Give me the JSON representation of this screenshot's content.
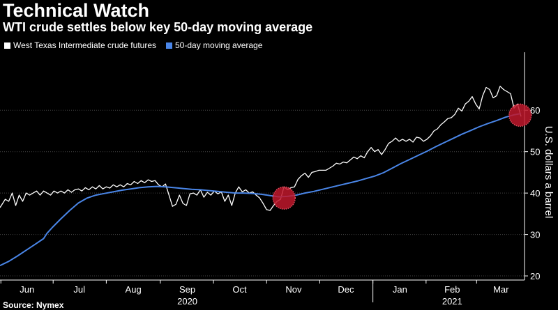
{
  "header": {
    "title": "Technical Watch",
    "subtitle": "WTI crude settles below key 50-day moving average"
  },
  "footer": {
    "source": "Source: Nymex"
  },
  "colors": {
    "background": "#000000",
    "wti": "#ffffff",
    "ma": "#4a86e8",
    "highlight": "#c0182b",
    "grid": "#444444"
  },
  "chart_data": {
    "type": "line",
    "title": "Technical Watch",
    "subtitle": "WTI crude settles below key 50-day moving average",
    "xlabel": "",
    "ylabel": "U.S. dollars a barrel",
    "ylim": [
      19,
      74
    ],
    "y_ticks": [
      20,
      30,
      40,
      50,
      60
    ],
    "y_axis_position": "right",
    "grid": true,
    "legend_placement": "top-left",
    "x_ticks": [
      {
        "label": "Jun",
        "x": 15.5
      },
      {
        "label": "Jul",
        "x": 45.5
      },
      {
        "label": "Aug",
        "x": 76.5
      },
      {
        "label": "Sep",
        "x": 107.5
      },
      {
        "label": "Oct",
        "x": 137.5
      },
      {
        "label": "Nov",
        "x": 168.5
      },
      {
        "label": "Dec",
        "x": 198.5
      },
      {
        "label": "Jan",
        "x": 229.5
      },
      {
        "label": "Feb",
        "x": 259.5
      },
      {
        "label": "Mar",
        "x": 287.5
      }
    ],
    "year_labels": [
      {
        "label": "2020",
        "x": 107.5
      },
      {
        "label": "2021",
        "x": 259.5
      }
    ],
    "year_divider_x": 214,
    "series": [
      {
        "name": "West Texas Intermediate crude futures",
        "color": "#ffffff",
        "points": [
          [
            0,
            36.5
          ],
          [
            3,
            38.5
          ],
          [
            5,
            38.0
          ],
          [
            7,
            40.0
          ],
          [
            9,
            37.0
          ],
          [
            11,
            39.5
          ],
          [
            13,
            38.0
          ],
          [
            15,
            40.0
          ],
          [
            17,
            39.5
          ],
          [
            19,
            40.0
          ],
          [
            21,
            40.5
          ],
          [
            23,
            39.5
          ],
          [
            25,
            40.5
          ],
          [
            27,
            40.0
          ],
          [
            29,
            39.5
          ],
          [
            31,
            40.5
          ],
          [
            33,
            40.0
          ],
          [
            35,
            40.5
          ],
          [
            37,
            40.0
          ],
          [
            39,
            40.8
          ],
          [
            41,
            40.2
          ],
          [
            43,
            40.8
          ],
          [
            45,
            41.0
          ],
          [
            47,
            40.5
          ],
          [
            49,
            41.3
          ],
          [
            51,
            40.8
          ],
          [
            53,
            41.5
          ],
          [
            55,
            41.0
          ],
          [
            57,
            41.8
          ],
          [
            59,
            41.0
          ],
          [
            61,
            41.5
          ],
          [
            63,
            41.2
          ],
          [
            65,
            42.0
          ],
          [
            67,
            41.5
          ],
          [
            69,
            42.0
          ],
          [
            71,
            41.5
          ],
          [
            73,
            42.3
          ],
          [
            75,
            42.0
          ],
          [
            77,
            42.8
          ],
          [
            79,
            42.3
          ],
          [
            81,
            43.0
          ],
          [
            83,
            42.5
          ],
          [
            85,
            43.2
          ],
          [
            87,
            42.8
          ],
          [
            89,
            43.0
          ],
          [
            91,
            42.0
          ],
          [
            93,
            41.5
          ],
          [
            95,
            42.2
          ],
          [
            97,
            39.5
          ],
          [
            99,
            36.8
          ],
          [
            101,
            37.3
          ],
          [
            103,
            39.5
          ],
          [
            105,
            37.5
          ],
          [
            107,
            37.0
          ],
          [
            109,
            39.8
          ],
          [
            111,
            40.0
          ],
          [
            113,
            39.5
          ],
          [
            115,
            40.8
          ],
          [
            117,
            39.0
          ],
          [
            119,
            40.2
          ],
          [
            121,
            39.5
          ],
          [
            123,
            40.5
          ],
          [
            125,
            39.8
          ],
          [
            127,
            40.3
          ],
          [
            129,
            38.0
          ],
          [
            131,
            39.5
          ],
          [
            133,
            37.0
          ],
          [
            135,
            40.0
          ],
          [
            137,
            41.5
          ],
          [
            139,
            40.3
          ],
          [
            141,
            40.8
          ],
          [
            143,
            40.0
          ],
          [
            145,
            40.3
          ],
          [
            147,
            39.5
          ],
          [
            149,
            38.8
          ],
          [
            151,
            37.5
          ],
          [
            153,
            36.0
          ],
          [
            155,
            35.8
          ],
          [
            157,
            37.0
          ],
          [
            159,
            38.0
          ],
          [
            161,
            38.5
          ],
          [
            163,
            41.5
          ],
          [
            165,
            40.8
          ],
          [
            167,
            41.3
          ],
          [
            169,
            41.5
          ],
          [
            171,
            43.3
          ],
          [
            173,
            44.2
          ],
          [
            175,
            44.8
          ],
          [
            177,
            43.8
          ],
          [
            179,
            45.0
          ],
          [
            181,
            45.2
          ],
          [
            183,
            45.5
          ],
          [
            185,
            45.5
          ],
          [
            187,
            45.5
          ],
          [
            189,
            46.0
          ],
          [
            191,
            46.5
          ],
          [
            193,
            47.2
          ],
          [
            195,
            47.0
          ],
          [
            197,
            47.5
          ],
          [
            199,
            47.3
          ],
          [
            201,
            48.0
          ],
          [
            203,
            48.7
          ],
          [
            205,
            48.3
          ],
          [
            207,
            49.0
          ],
          [
            209,
            48.5
          ],
          [
            211,
            50.0
          ],
          [
            213,
            51.0
          ],
          [
            215,
            50.0
          ],
          [
            217,
            50.5
          ],
          [
            219,
            49.3
          ],
          [
            221,
            50.5
          ],
          [
            223,
            52.0
          ],
          [
            225,
            52.5
          ],
          [
            227,
            53.3
          ],
          [
            229,
            52.5
          ],
          [
            231,
            53.0
          ],
          [
            233,
            52.5
          ],
          [
            235,
            53.0
          ],
          [
            237,
            52.3
          ],
          [
            239,
            53.5
          ],
          [
            241,
            53.3
          ],
          [
            243,
            52.5
          ],
          [
            245,
            53.0
          ],
          [
            247,
            53.8
          ],
          [
            249,
            55.0
          ],
          [
            251,
            55.5
          ],
          [
            253,
            56.5
          ],
          [
            255,
            57.2
          ],
          [
            257,
            58.0
          ],
          [
            259,
            58.2
          ],
          [
            261,
            59.0
          ],
          [
            263,
            60.5
          ],
          [
            265,
            59.8
          ],
          [
            267,
            61.5
          ],
          [
            269,
            62.2
          ],
          [
            271,
            63.3
          ],
          [
            273,
            61.5
          ],
          [
            275,
            60.3
          ],
          [
            277,
            63.5
          ],
          [
            279,
            65.5
          ],
          [
            281,
            65.0
          ],
          [
            283,
            63.0
          ],
          [
            285,
            63.5
          ],
          [
            287,
            65.8
          ],
          [
            289,
            65.0
          ],
          [
            291,
            64.5
          ],
          [
            293,
            64.0
          ],
          [
            295,
            60.5
          ],
          [
            297,
            61.5
          ],
          [
            299,
            58.5
          ]
        ]
      },
      {
        "name": "50-day moving average",
        "color": "#4a86e8",
        "points": [
          [
            0,
            22.5
          ],
          [
            5,
            23.5
          ],
          [
            10,
            24.8
          ],
          [
            15,
            26.2
          ],
          [
            20,
            27.6
          ],
          [
            25,
            29.0
          ],
          [
            27,
            30.3
          ],
          [
            30,
            31.7
          ],
          [
            35,
            33.8
          ],
          [
            40,
            35.8
          ],
          [
            45,
            37.6
          ],
          [
            50,
            38.8
          ],
          [
            55,
            39.5
          ],
          [
            60,
            39.9
          ],
          [
            65,
            40.3
          ],
          [
            70,
            40.7
          ],
          [
            75,
            41.0
          ],
          [
            80,
            41.3
          ],
          [
            85,
            41.5
          ],
          [
            90,
            41.6
          ],
          [
            95,
            41.5
          ],
          [
            100,
            41.3
          ],
          [
            105,
            41.1
          ],
          [
            110,
            40.9
          ],
          [
            115,
            40.8
          ],
          [
            120,
            40.6
          ],
          [
            125,
            40.4
          ],
          [
            130,
            40.2
          ],
          [
            135,
            40.0
          ],
          [
            140,
            40.0
          ],
          [
            145,
            39.9
          ],
          [
            150,
            39.7
          ],
          [
            155,
            39.4
          ],
          [
            160,
            39.1
          ],
          [
            165,
            39.2
          ],
          [
            170,
            39.5
          ],
          [
            175,
            40.0
          ],
          [
            180,
            40.4
          ],
          [
            185,
            40.9
          ],
          [
            190,
            41.4
          ],
          [
            195,
            41.9
          ],
          [
            200,
            42.4
          ],
          [
            205,
            42.9
          ],
          [
            210,
            43.5
          ],
          [
            215,
            44.1
          ],
          [
            220,
            44.9
          ],
          [
            225,
            46.0
          ],
          [
            230,
            47.1
          ],
          [
            235,
            48.1
          ],
          [
            240,
            49.1
          ],
          [
            245,
            50.1
          ],
          [
            250,
            51.2
          ],
          [
            255,
            52.2
          ],
          [
            260,
            53.2
          ],
          [
            265,
            54.2
          ],
          [
            270,
            55.1
          ],
          [
            275,
            56.0
          ],
          [
            280,
            56.8
          ],
          [
            285,
            57.5
          ],
          [
            290,
            58.3
          ],
          [
            295,
            58.9
          ],
          [
            299,
            59.2
          ]
        ]
      }
    ],
    "highlights": [
      {
        "label": "crossover-nov",
        "x": 163,
        "y": 38.8
      },
      {
        "label": "cross-below-mar",
        "x": 298.5,
        "y": 58.8
      }
    ],
    "x_range": [
      0,
      301
    ]
  }
}
